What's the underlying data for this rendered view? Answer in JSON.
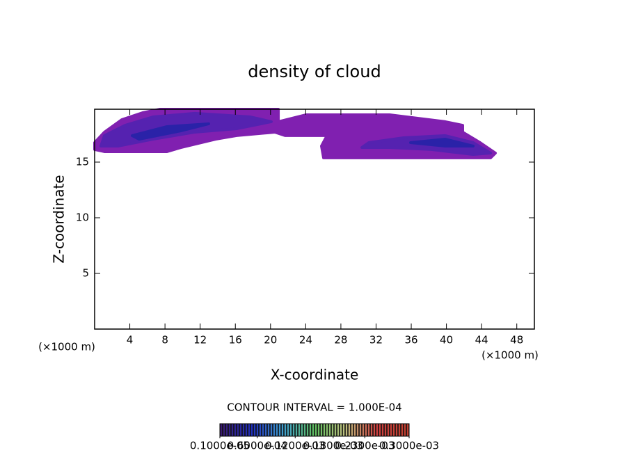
{
  "chart_data": {
    "type": "contour",
    "title": "density of cloud",
    "x_label": "X-coordinate",
    "y_label": "Z-coordinate",
    "x_unit": "(×1000 m)",
    "contour_interval": "CONTOUR INTERVAL = 1.000E-04",
    "xlim": [
      0,
      50
    ],
    "ylim": [
      0,
      19.75
    ],
    "xticks": [
      4,
      8,
      12,
      16,
      20,
      24,
      28,
      32,
      36,
      40,
      44,
      48
    ],
    "yticks": [
      5,
      10,
      15
    ],
    "regions": [
      {
        "level": 1e-06,
        "color": "#8020b0",
        "points": [
          [
            0,
            16.75
          ],
          [
            1.11,
            17.69
          ],
          [
            3.09,
            18.81
          ],
          [
            5.46,
            19.44
          ],
          [
            7.44,
            19.75
          ],
          [
            20.89,
            19.75
          ],
          [
            20.89,
            18.63
          ],
          [
            24.05,
            19.25
          ],
          [
            33.54,
            19.25
          ],
          [
            39.87,
            18.63
          ],
          [
            41.85,
            18.31
          ],
          [
            41.85,
            17.69
          ],
          [
            43.83,
            16.75
          ],
          [
            45.57,
            15.81
          ],
          [
            45.02,
            15.38
          ],
          [
            36.71,
            15.38
          ],
          [
            26.03,
            15.38
          ],
          [
            25.79,
            16.44
          ],
          [
            26.42,
            17.38
          ],
          [
            21.68,
            17.38
          ],
          [
            20.49,
            17.69
          ],
          [
            16.14,
            17.38
          ],
          [
            13.77,
            17.06
          ],
          [
            9.81,
            16.31
          ],
          [
            8.23,
            15.94
          ],
          [
            5.06,
            15.94
          ],
          [
            1.11,
            15.94
          ],
          [
            0,
            16.13
          ]
        ]
      },
      {
        "level": 6e-05,
        "color": "#5522b0",
        "points": [
          [
            1.11,
            17.38
          ],
          [
            3.48,
            18.31
          ],
          [
            6.65,
            19.06
          ],
          [
            11.39,
            19.38
          ],
          [
            17.72,
            19.06
          ],
          [
            20.09,
            18.63
          ],
          [
            16.14,
            18
          ],
          [
            11.39,
            17.69
          ],
          [
            6.65,
            17.06
          ],
          [
            2.69,
            16.44
          ],
          [
            0.71,
            16.44
          ]
        ]
      },
      {
        "level": 6e-05,
        "color": "#5522b0",
        "points": [
          [
            31.17,
            16.75
          ],
          [
            35.13,
            17.19
          ],
          [
            39.87,
            17.38
          ],
          [
            43.04,
            16.75
          ],
          [
            45.02,
            15.81
          ],
          [
            43.04,
            15.69
          ],
          [
            38.29,
            16.13
          ],
          [
            33.54,
            16.31
          ],
          [
            30.38,
            16.31
          ]
        ]
      },
      {
        "level": 0.00012,
        "color": "#2a22a8",
        "points": [
          [
            4.27,
            17.38
          ],
          [
            8.23,
            18.19
          ],
          [
            12.97,
            18.44
          ],
          [
            9.81,
            17.81
          ],
          [
            5.06,
            17.06
          ]
        ]
      },
      {
        "level": 0.00012,
        "color": "#2a22a8",
        "points": [
          [
            35.92,
            16.75
          ],
          [
            39.87,
            17.06
          ],
          [
            43.04,
            16.44
          ],
          [
            39.87,
            16.44
          ]
        ]
      }
    ],
    "colorbar": {
      "colors": [
        "#3a1a70",
        "#2030c0",
        "#40a0d0",
        "#60c060",
        "#c0c080",
        "#d04040",
        "#c04030"
      ],
      "ticks": [
        {
          "value": 1e-06,
          "label": "0.1000e-05"
        },
        {
          "value": 6e-05,
          "label": "0.6000e-04"
        },
        {
          "value": 0.00012,
          "label": "0.1200e-03"
        },
        {
          "value": 0.00018,
          "label": "0.1800e-03"
        },
        {
          "value": 0.00023,
          "label": "0.2300e-03"
        },
        {
          "value": 0.0003,
          "label": "0.3000e-03"
        }
      ]
    }
  }
}
